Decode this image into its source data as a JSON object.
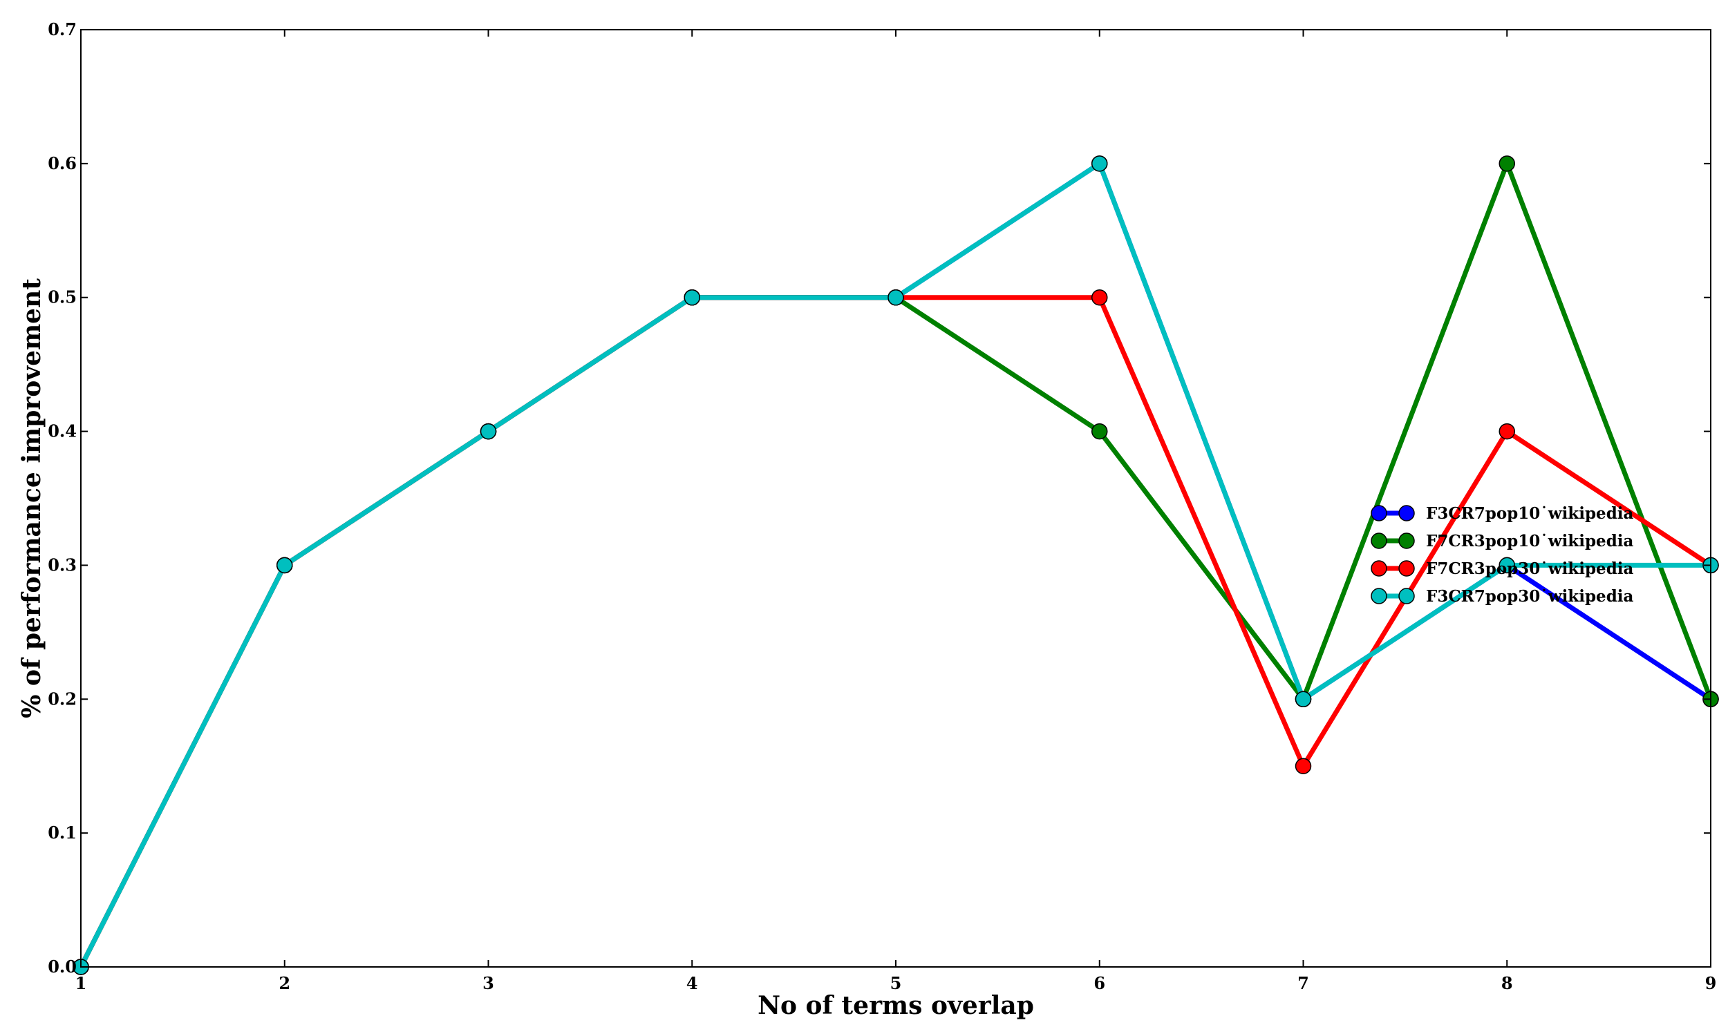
{
  "chart_data": {
    "type": "line",
    "title": "",
    "xlabel": "No of terms overlap",
    "ylabel": "% of performance improvement",
    "x": [
      1,
      2,
      3,
      4,
      5,
      6,
      7,
      8,
      9
    ],
    "xlim": [
      1,
      9
    ],
    "ylim": [
      0,
      0.7
    ],
    "xticks": [
      "1",
      "2",
      "3",
      "4",
      "5",
      "6",
      "7",
      "8",
      "9"
    ],
    "yticks": [
      "0.0",
      "0.1",
      "0.2",
      "0.3",
      "0.4",
      "0.5",
      "0.6",
      "0.7"
    ],
    "grid": false,
    "legend_position": "center-right",
    "series": [
      {
        "name": "F3CR7pop10˙wikipedia",
        "color": "#0000ff",
        "values": [
          0.0,
          0.3,
          0.4,
          0.5,
          0.5,
          0.6,
          0.2,
          0.3,
          0.2
        ]
      },
      {
        "name": "F7CR3pop10˙wikipedia",
        "color": "#008000",
        "values": [
          0.0,
          0.3,
          0.4,
          0.5,
          0.5,
          0.4,
          0.2,
          0.6,
          0.2
        ]
      },
      {
        "name": "F7CR3pop30˙wikipedia",
        "color": "#ff0000",
        "values": [
          0.0,
          0.3,
          0.4,
          0.5,
          0.5,
          0.5,
          0.15,
          0.4,
          0.3
        ]
      },
      {
        "name": "F3CR7pop30˙wikipedia",
        "color": "#00bfbf",
        "values": [
          0.0,
          0.3,
          0.4,
          0.5,
          0.5,
          0.6,
          0.2,
          0.3,
          0.3
        ]
      }
    ]
  }
}
